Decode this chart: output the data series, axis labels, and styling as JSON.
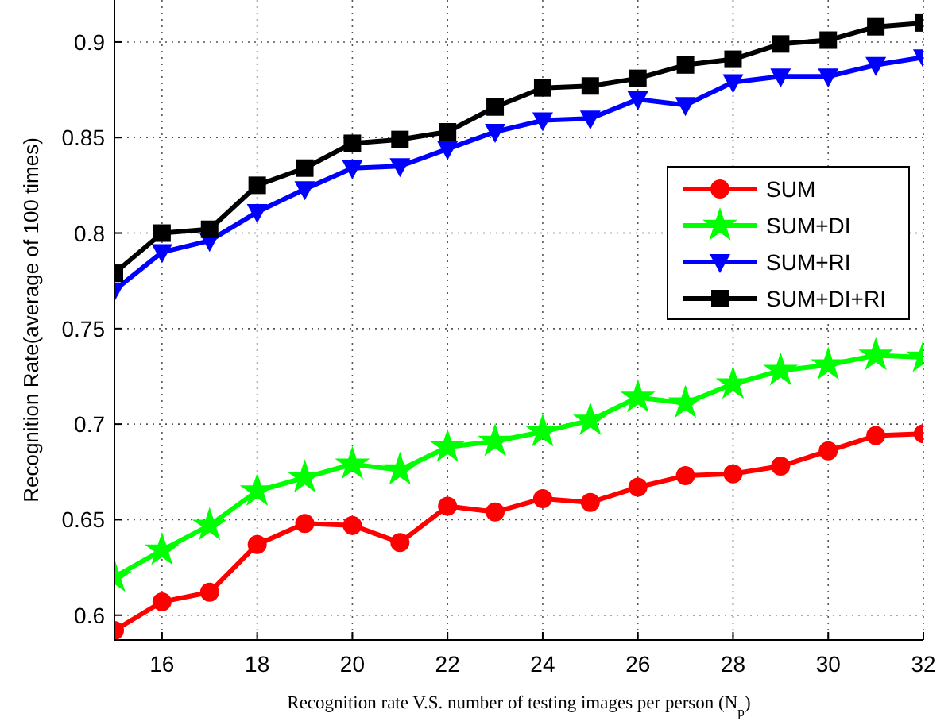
{
  "chart_data": {
    "type": "line",
    "xlabel": "Recognition rate V.S. number of testing images per person (N$_{p}$)",
    "ylabel": "Recognition Rate(average of 100 times)",
    "x": [
      15,
      16,
      17,
      18,
      19,
      20,
      21,
      22,
      23,
      24,
      25,
      26,
      27,
      28,
      29,
      30,
      31,
      32
    ],
    "xlim": [
      15,
      32
    ],
    "xticks": [
      16,
      18,
      20,
      22,
      24,
      26,
      28,
      30,
      32
    ],
    "ylim": [
      0.587,
      0.922
    ],
    "yticks": [
      0.6,
      0.65,
      0.7,
      0.75,
      0.8,
      0.85,
      0.9
    ],
    "grid": true,
    "legend": "right",
    "line_style": "solid",
    "series": [
      {
        "name": "SUM",
        "color": "#ff0000",
        "marker": "circle",
        "values": [
          0.592,
          0.607,
          0.612,
          0.637,
          0.648,
          0.647,
          0.638,
          0.657,
          0.654,
          0.661,
          0.659,
          0.667,
          0.673,
          0.674,
          0.678,
          0.686,
          0.694,
          0.695
        ]
      },
      {
        "name": "SUM+DI",
        "color": "#00ff00",
        "marker": "star",
        "values": [
          0.62,
          0.634,
          0.647,
          0.665,
          0.672,
          0.679,
          0.676,
          0.688,
          0.691,
          0.696,
          0.702,
          0.714,
          0.711,
          0.721,
          0.728,
          0.731,
          0.736,
          0.735
        ]
      },
      {
        "name": "SUM+RI",
        "color": "#0000ff",
        "marker": "triangle",
        "values": [
          0.77,
          0.79,
          0.796,
          0.811,
          0.823,
          0.834,
          0.835,
          0.844,
          0.853,
          0.859,
          0.86,
          0.87,
          0.867,
          0.879,
          0.882,
          0.882,
          0.888,
          0.892
        ]
      },
      {
        "name": "SUM+DI+RI",
        "color": "#000000",
        "marker": "square",
        "values": [
          0.779,
          0.8,
          0.802,
          0.825,
          0.834,
          0.847,
          0.849,
          0.853,
          0.866,
          0.876,
          0.877,
          0.881,
          0.888,
          0.891,
          0.899,
          0.901,
          0.908,
          0.91
        ]
      }
    ]
  }
}
